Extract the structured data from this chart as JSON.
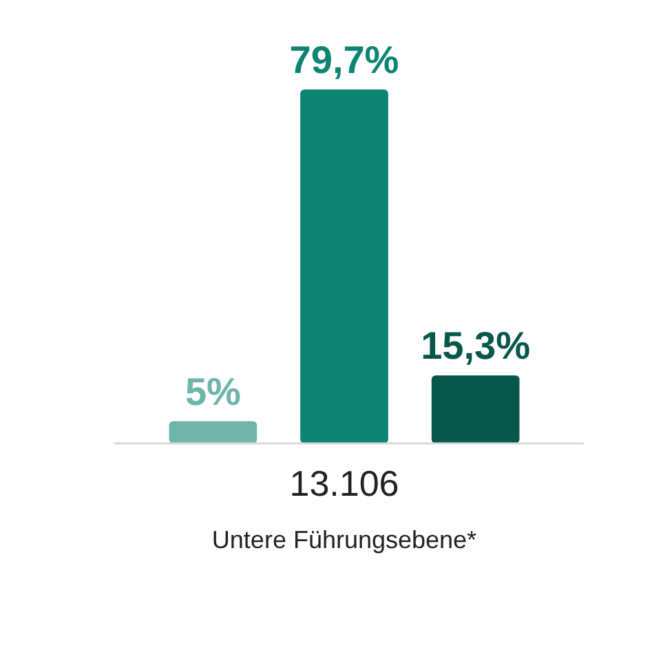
{
  "chart_data": {
    "type": "bar",
    "categories": [
      null,
      null,
      null
    ],
    "values": [
      5,
      79.7,
      15.3
    ],
    "colors": [
      "#6fb5aa",
      "#0e8473",
      "#07574b"
    ],
    "value_labels": [
      "5%",
      "79,7%",
      "15,3%"
    ],
    "xlabel": "Untere Führungsebene*",
    "annotations": [
      "13.106"
    ]
  }
}
